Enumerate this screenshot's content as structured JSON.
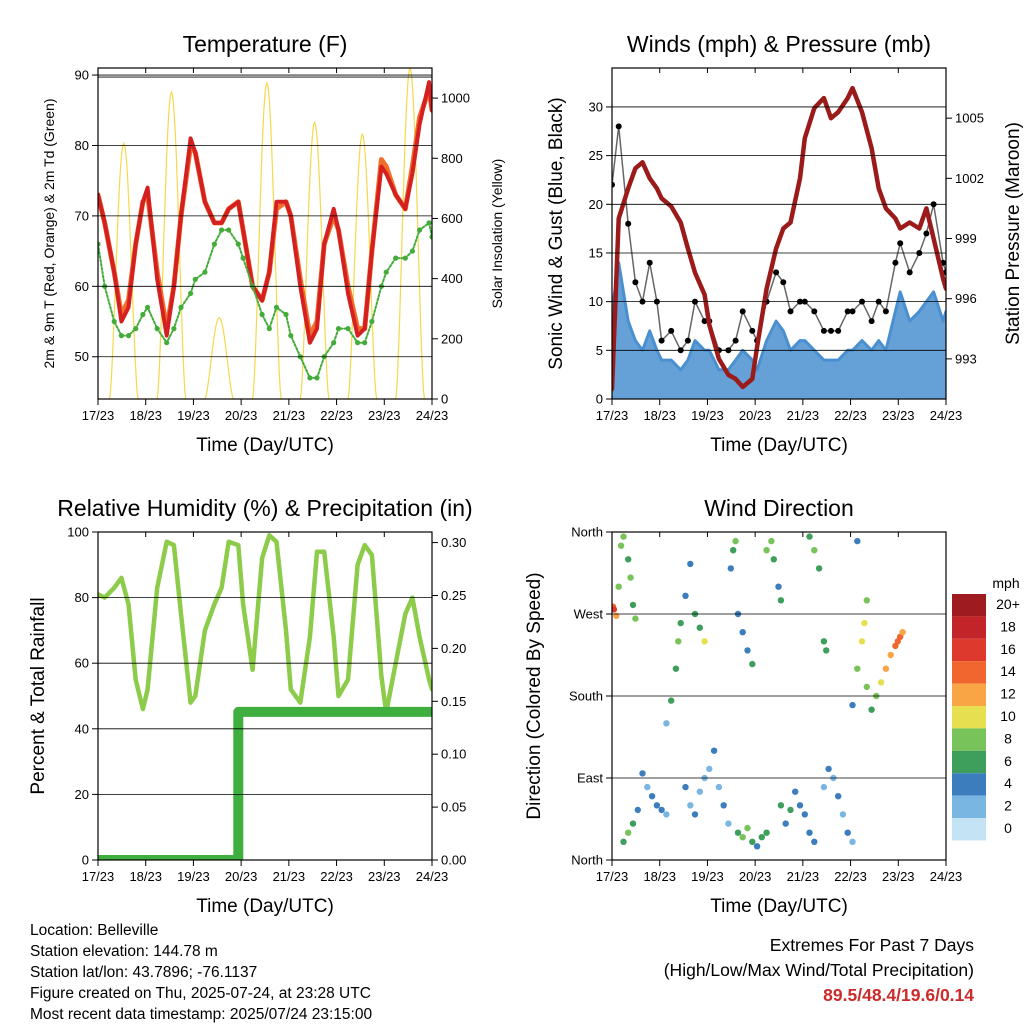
{
  "x_ticks": [
    "17/23",
    "18/23",
    "19/23",
    "20/23",
    "21/23",
    "22/23",
    "23/23",
    "24/23"
  ],
  "xlabel": "Time (Day/UTC)",
  "colors": {
    "temp2m": "#d42020",
    "temp9m": "#f36d2a",
    "dewpoint": "#44ad3a",
    "solar": "#f6d84b",
    "wind": "#4a90d0",
    "gust": "#000000",
    "pressure": "#9b1a1a",
    "rh": "#8ccc4a",
    "precip": "#3eaf3e"
  },
  "charts": {
    "temperature": {
      "title": "Temperature (F)",
      "ylabel": "2m & 9m T (Red, Orange) & 2m Td (Green)",
      "y2label": "Solar Insolation (Yellow)",
      "y_ticks": [
        "50",
        "60",
        "70",
        "80",
        "90"
      ],
      "y2_ticks": [
        "0",
        "200",
        "400",
        "600",
        "800",
        "1000"
      ]
    },
    "winds": {
      "title": "Winds (mph) & Pressure (mb)",
      "ylabel": "Sonic Wind & Gust (Blue, Black)",
      "y2label": "Station Pressure (Maroon)",
      "y_ticks": [
        "0",
        "5",
        "10",
        "15",
        "20",
        "25",
        "30"
      ],
      "y2_ticks": [
        "993",
        "996",
        "999",
        "1002",
        "1005"
      ]
    },
    "humidity": {
      "title": "Relative Humidity (%) & Precipitation (in)",
      "ylabel": "Percent & Total Rainfall",
      "y_ticks": [
        "0",
        "20",
        "40",
        "60",
        "80",
        "100"
      ],
      "y2_ticks": [
        "0.00",
        "0.05",
        "0.10",
        "0.15",
        "0.20",
        "0.25",
        "0.30"
      ]
    },
    "direction": {
      "title": "Wind Direction",
      "ylabel": "Direction (Colored By Speed)",
      "y_ticks": [
        "North",
        "East",
        "South",
        "West",
        "North"
      ],
      "legend_unit": "mph",
      "legend_labels": [
        "20+",
        "18",
        "16",
        "14",
        "12",
        "10",
        "8",
        "6",
        "4",
        "2",
        "0"
      ],
      "legend_colors": [
        "#9e1c20",
        "#c2242a",
        "#dd3a2d",
        "#f1662f",
        "#f9a445",
        "#e6e051",
        "#78c35a",
        "#3e9e5b",
        "#3b7dbd",
        "#7ab6e2",
        "#c4e4f6"
      ]
    }
  },
  "chart_data": [
    {
      "type": "line",
      "title": "Temperature (F)",
      "xlabel": "Time (Day/UTC)",
      "ylabel": "2m & 9m T (Red, Orange) & 2m Td (Green)",
      "y2label": "Solar Insolation (Yellow)",
      "ylim": [
        44,
        91
      ],
      "y2lim": [
        0,
        1100
      ],
      "xlim": [
        17.96,
        24.96
      ],
      "x": [
        17.96,
        18.1,
        18.3,
        18.45,
        18.6,
        18.75,
        18.9,
        19.0,
        19.2,
        19.4,
        19.55,
        19.7,
        19.9,
        20.0,
        20.2,
        20.4,
        20.55,
        20.7,
        20.9,
        21.0,
        21.2,
        21.4,
        21.55,
        21.7,
        21.9,
        22.0,
        22.2,
        22.4,
        22.55,
        22.7,
        22.9,
        23.0,
        23.2,
        23.4,
        23.55,
        23.7,
        23.9,
        24.0,
        24.2,
        24.4,
        24.55,
        24.7,
        24.9,
        24.96
      ],
      "series": [
        {
          "values": [
            73,
            69,
            62,
            55,
            57,
            66,
            72,
            74,
            61,
            53,
            60,
            70,
            81,
            79,
            72,
            69,
            69,
            71,
            72,
            68,
            60,
            58,
            62,
            72,
            72,
            70,
            60,
            52,
            54,
            66,
            71,
            68,
            59,
            53,
            54,
            65,
            77,
            76,
            73,
            71,
            76,
            83,
            89,
            85
          ]
        },
        {
          "values": [
            73,
            69,
            62,
            56,
            58,
            66,
            72,
            73,
            62,
            54,
            60,
            70,
            80,
            79,
            72,
            69,
            69,
            71,
            72,
            68,
            60,
            58,
            62,
            71,
            72,
            70,
            61,
            53,
            55,
            66,
            70,
            68,
            60,
            54,
            54,
            65,
            78,
            77,
            73,
            71,
            77,
            84,
            88,
            85
          ]
        },
        {
          "values": [
            66,
            60,
            55,
            53,
            53,
            54,
            56,
            57,
            54,
            52,
            54,
            57,
            59,
            61,
            62,
            66,
            68,
            68,
            66,
            64,
            60,
            56,
            54,
            57,
            56,
            53,
            50,
            47,
            47,
            50,
            52,
            54,
            54,
            52,
            52,
            55,
            60,
            62,
            64,
            64,
            65,
            68,
            69,
            67
          ]
        }
      ],
      "solar": {
        "peaks": [
          {
            "day": 18.5,
            "value": 850
          },
          {
            "day": 19.5,
            "value": 1020
          },
          {
            "day": 20.5,
            "value": 270
          },
          {
            "day": 21.5,
            "value": 1050
          },
          {
            "day": 22.5,
            "value": 920
          },
          {
            "day": 23.5,
            "value": 880
          },
          {
            "day": 24.5,
            "value": 1100
          }
        ]
      }
    },
    {
      "type": "line",
      "title": "Winds (mph) & Pressure (mb)",
      "xlabel": "Time (Day/UTC)",
      "ylabel": "Sonic Wind & Gust (Blue, Black)",
      "y2label": "Station Pressure (Maroon)",
      "ylim": [
        0,
        34
      ],
      "y2lim": [
        991,
        1007.5
      ],
      "xlim": [
        17.96,
        24.96
      ],
      "x": [
        17.96,
        18.1,
        18.3,
        18.45,
        18.6,
        18.75,
        18.9,
        19.0,
        19.2,
        19.4,
        19.55,
        19.7,
        19.9,
        20.0,
        20.2,
        20.4,
        20.55,
        20.7,
        20.9,
        21.0,
        21.2,
        21.4,
        21.55,
        21.7,
        21.9,
        22.0,
        22.2,
        22.4,
        22.55,
        22.7,
        22.9,
        23.0,
        23.2,
        23.4,
        23.55,
        23.7,
        23.9,
        24.0,
        24.2,
        24.4,
        24.55,
        24.7,
        24.9,
        24.96
      ],
      "series": [
        {
          "values": [
            9,
            14,
            8,
            6,
            5,
            7,
            5,
            4,
            4,
            3,
            4,
            6,
            5,
            5,
            3,
            3,
            4,
            5,
            4,
            3,
            6,
            8,
            7,
            5,
            6,
            6,
            5,
            4,
            4,
            4,
            5,
            5,
            6,
            5,
            6,
            5,
            9,
            11,
            8,
            9,
            10,
            11,
            8,
            9
          ]
        },
        {
          "values": [
            22,
            28,
            18,
            12,
            10,
            14,
            10,
            6,
            7,
            5,
            6,
            10,
            8,
            8,
            5,
            5,
            6,
            9,
            7,
            6,
            10,
            13,
            12,
            9,
            10,
            10,
            9,
            7,
            7,
            7,
            9,
            9,
            10,
            8,
            10,
            9,
            14,
            16,
            13,
            15,
            17,
            20,
            14,
            13
          ]
        },
        {
          "values": [
            991.5,
            1000,
            1001.5,
            1002.5,
            1002.8,
            1002,
            1001.5,
            1001,
            1000.6,
            999.8,
            998.5,
            997.3,
            996.2,
            994.7,
            993,
            992.2,
            992,
            991.6,
            992,
            993.6,
            996.5,
            998.5,
            999.5,
            999.8,
            1002,
            1004,
            1005.5,
            1006,
            1005,
            1005.3,
            1006,
            1006.5,
            1005.3,
            1003.5,
            1001.5,
            1000.5,
            1000,
            999.5,
            999.8,
            999.5,
            1000.5,
            999,
            997,
            996.5
          ]
        }
      ]
    },
    {
      "type": "line",
      "title": "Relative Humidity (%) & Precipitation (in)",
      "xlabel": "Time (Day/UTC)",
      "ylabel": "Percent & Total Rainfall",
      "ylim": [
        0,
        100
      ],
      "y2lim": [
        0,
        0.31
      ],
      "xlim": [
        17.96,
        24.96
      ],
      "x": [
        17.96,
        18.1,
        18.3,
        18.45,
        18.6,
        18.75,
        18.9,
        19.0,
        19.2,
        19.4,
        19.55,
        19.7,
        19.9,
        20.0,
        20.2,
        20.4,
        20.55,
        20.7,
        20.9,
        21.0,
        21.2,
        21.4,
        21.55,
        21.7,
        21.9,
        22.0,
        22.2,
        22.4,
        22.55,
        22.7,
        22.9,
        23.0,
        23.2,
        23.4,
        23.55,
        23.7,
        23.9,
        24.0,
        24.2,
        24.4,
        24.55,
        24.7,
        24.9,
        24.96
      ],
      "series": [
        {
          "values": [
            81,
            80,
            83,
            86,
            78,
            55,
            46,
            52,
            83,
            97,
            96,
            75,
            48,
            50,
            70,
            78,
            83,
            97,
            96,
            78,
            58,
            92,
            99,
            97,
            70,
            52,
            48,
            68,
            94,
            94,
            68,
            50,
            55,
            90,
            96,
            93,
            56,
            45,
            60,
            75,
            80,
            68,
            55,
            52
          ]
        },
        {
          "values": [
            0,
            0,
            0,
            0,
            0,
            0,
            0,
            0,
            0,
            0,
            0,
            0,
            0,
            0,
            0,
            0,
            0,
            0,
            0.14,
            0.14,
            0.14,
            0.14,
            0.14,
            0.14,
            0.14,
            0.14,
            0.14,
            0.14,
            0.14,
            0.14,
            0.14,
            0.14,
            0.14,
            0.14,
            0.14,
            0.14,
            0.14,
            0.14,
            0.14,
            0.14,
            0.14,
            0.14,
            0.14,
            0.14
          ]
        }
      ]
    },
    {
      "type": "scatter",
      "title": "Wind Direction",
      "xlabel": "Time (Day/UTC)",
      "ylabel": "Direction (Colored By Speed)",
      "ylim": [
        0,
        360
      ],
      "xlim": [
        17.96,
        24.96
      ],
      "points": [
        [
          17.98,
          278,
          14
        ],
        [
          18.0,
          275,
          16
        ],
        [
          18.05,
          268,
          12
        ],
        [
          18.1,
          300,
          8
        ],
        [
          18.15,
          345,
          8
        ],
        [
          18.2,
          355,
          7
        ],
        [
          18.3,
          330,
          6
        ],
        [
          18.35,
          310,
          8
        ],
        [
          18.4,
          280,
          6
        ],
        [
          18.45,
          265,
          8
        ],
        [
          18.2,
          20,
          6
        ],
        [
          18.3,
          30,
          8
        ],
        [
          18.4,
          40,
          5
        ],
        [
          18.5,
          55,
          3
        ],
        [
          18.6,
          95,
          3
        ],
        [
          18.7,
          80,
          2
        ],
        [
          18.8,
          70,
          3
        ],
        [
          18.9,
          60,
          4
        ],
        [
          19.0,
          55,
          3
        ],
        [
          19.1,
          50,
          2
        ],
        [
          19.1,
          150,
          2
        ],
        [
          19.2,
          175,
          5
        ],
        [
          19.3,
          210,
          6
        ],
        [
          19.35,
          240,
          7
        ],
        [
          19.4,
          260,
          6
        ],
        [
          19.5,
          290,
          4
        ],
        [
          19.6,
          325,
          3
        ],
        [
          19.7,
          270,
          5
        ],
        [
          19.8,
          255,
          6
        ],
        [
          19.9,
          240,
          9
        ],
        [
          19.5,
          80,
          3
        ],
        [
          19.6,
          60,
          2
        ],
        [
          19.7,
          50,
          3
        ],
        [
          19.8,
          75,
          2
        ],
        [
          19.9,
          90,
          2
        ],
        [
          20.0,
          100,
          2
        ],
        [
          20.1,
          120,
          3
        ],
        [
          20.2,
          80,
          2
        ],
        [
          20.3,
          60,
          3
        ],
        [
          20.4,
          40,
          2
        ],
        [
          20.45,
          320,
          4
        ],
        [
          20.5,
          340,
          6
        ],
        [
          20.55,
          350,
          7
        ],
        [
          20.6,
          270,
          4
        ],
        [
          20.7,
          250,
          4
        ],
        [
          20.8,
          230,
          3
        ],
        [
          20.9,
          215,
          5
        ],
        [
          20.6,
          30,
          6
        ],
        [
          20.7,
          25,
          7
        ],
        [
          20.8,
          35,
          8
        ],
        [
          20.9,
          20,
          5
        ],
        [
          21.0,
          15,
          4
        ],
        [
          21.1,
          25,
          6
        ],
        [
          21.2,
          30,
          5
        ],
        [
          21.2,
          340,
          7
        ],
        [
          21.3,
          350,
          8
        ],
        [
          21.35,
          330,
          6
        ],
        [
          21.45,
          300,
          4
        ],
        [
          21.5,
          285,
          5
        ],
        [
          21.5,
          60,
          5
        ],
        [
          21.6,
          40,
          4
        ],
        [
          21.7,
          55,
          5
        ],
        [
          21.8,
          75,
          3
        ],
        [
          21.9,
          60,
          4
        ],
        [
          22.0,
          50,
          3
        ],
        [
          22.1,
          30,
          4
        ],
        [
          22.2,
          20,
          3
        ],
        [
          22.1,
          355,
          6
        ],
        [
          22.2,
          340,
          7
        ],
        [
          22.3,
          320,
          5
        ],
        [
          22.4,
          240,
          6
        ],
        [
          22.45,
          230,
          5
        ],
        [
          22.4,
          80,
          2
        ],
        [
          22.5,
          100,
          3
        ],
        [
          22.6,
          90,
          2
        ],
        [
          22.7,
          70,
          3
        ],
        [
          22.8,
          50,
          2
        ],
        [
          22.9,
          30,
          3
        ],
        [
          23.0,
          20,
          2
        ],
        [
          23.0,
          170,
          4
        ],
        [
          23.1,
          210,
          8
        ],
        [
          23.2,
          240,
          9
        ],
        [
          23.25,
          260,
          9
        ],
        [
          23.3,
          285,
          7
        ],
        [
          23.1,
          350,
          3
        ],
        [
          23.3,
          190,
          7
        ],
        [
          23.4,
          165,
          6
        ],
        [
          23.5,
          180,
          8
        ],
        [
          23.6,
          195,
          9
        ],
        [
          23.7,
          210,
          11
        ],
        [
          23.8,
          225,
          12
        ],
        [
          23.9,
          235,
          13
        ],
        [
          23.95,
          240,
          14
        ],
        [
          24.0,
          245,
          14
        ],
        [
          24.05,
          250,
          12
        ]
      ]
    }
  ],
  "footer": {
    "location": "Location: Belleville",
    "elevation": "Station elevation: 144.78 m",
    "latlon": "Station lat/lon: 43.7896; -76.1137",
    "created": "Figure created on Thu, 2025-07-24, at 23:28 UTC",
    "latest": "Most recent data timestamp: 2025/07/24 23:15:00",
    "extremes_title": "Extremes For Past 7 Days",
    "extremes_sub": "(High/Low/Max Wind/Total Precipitation)",
    "extremes_values": "89.5/48.4/19.6/0.14"
  }
}
